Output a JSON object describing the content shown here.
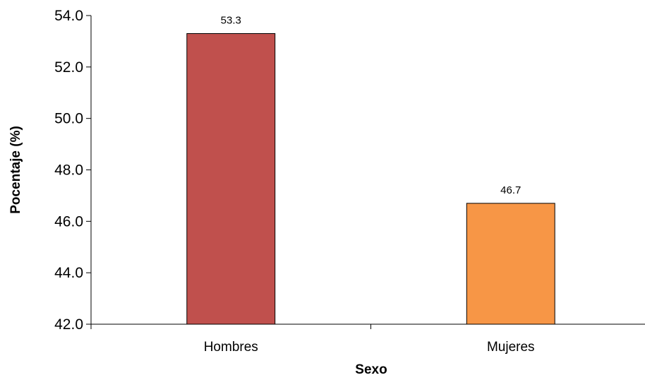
{
  "chart_data": {
    "type": "bar",
    "title": "",
    "xlabel": "Sexo",
    "ylabel": "Pocentaje (%)",
    "ylim": [
      42.0,
      54.0
    ],
    "yticks": [
      42.0,
      44.0,
      46.0,
      48.0,
      50.0,
      52.0,
      54.0
    ],
    "ytick_labels": [
      "42.0",
      "44.0",
      "46.0",
      "48.0",
      "50.0",
      "52.0",
      "54.0"
    ],
    "categories": [
      "Hombres",
      "Mujeres"
    ],
    "values": [
      53.3,
      46.7
    ],
    "data_labels": [
      "53.3",
      "46.7"
    ],
    "colors": [
      "#c0504d",
      "#f79646"
    ],
    "grid": false,
    "legend": "none"
  }
}
